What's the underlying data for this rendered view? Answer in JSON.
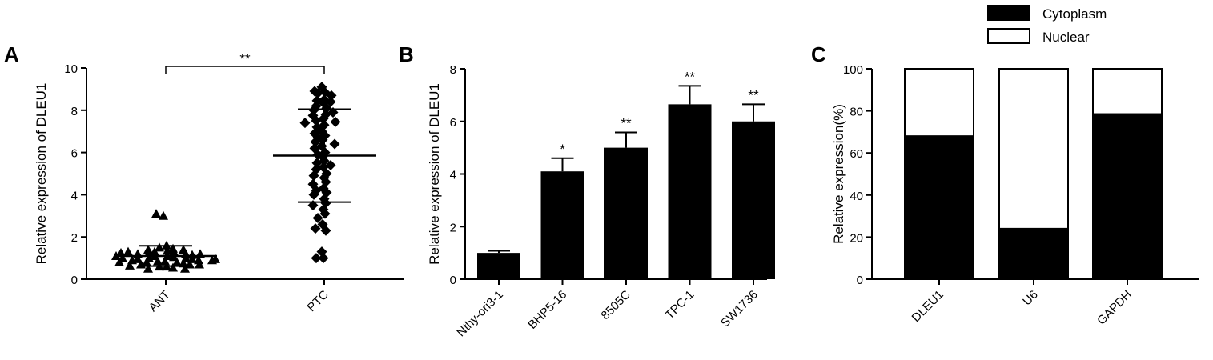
{
  "chart_data": [
    {
      "panel": "A",
      "type": "scatter",
      "ylabel": "Relative expression of DLEU1",
      "ylim": [
        0,
        10
      ],
      "yticks": [
        "0",
        "2",
        "4",
        "6",
        "8",
        "10"
      ],
      "categories": [
        "ANT",
        "PTC"
      ],
      "series": [
        {
          "group": "ANT",
          "marker": "triangle",
          "mean": 1.1,
          "sd": 0.48,
          "values": [
            3.0,
            3.1,
            1.6,
            1.5,
            1.45,
            1.4,
            1.35,
            1.3,
            1.3,
            1.25,
            1.2,
            1.2,
            1.15,
            1.1,
            1.1,
            1.05,
            1.0,
            1.0,
            0.95,
            0.95,
            0.9,
            0.9,
            0.85,
            0.85,
            0.8,
            0.8,
            0.75,
            0.7,
            0.7,
            0.65,
            0.6,
            0.6,
            0.55,
            0.5,
            0.5,
            1.3,
            1.2,
            1.0,
            0.9,
            0.7,
            1.4,
            1.1,
            0.8,
            1.25,
            0.95
          ]
        },
        {
          "group": "PTC",
          "marker": "diamond",
          "mean": 5.85,
          "sd": 2.2,
          "values": [
            9.1,
            8.9,
            8.85,
            8.8,
            8.7,
            8.5,
            8.45,
            8.4,
            8.35,
            8.2,
            8.1,
            8.0,
            7.9,
            7.8,
            7.75,
            7.6,
            7.5,
            7.45,
            7.4,
            7.3,
            7.2,
            7.0,
            6.9,
            6.8,
            6.7,
            6.6,
            6.5,
            6.4,
            6.3,
            6.2,
            6.0,
            5.9,
            5.8,
            5.6,
            5.5,
            5.4,
            5.3,
            5.2,
            5.0,
            4.9,
            4.8,
            4.6,
            4.5,
            4.3,
            4.2,
            4.1,
            4.0,
            3.8,
            3.6,
            3.5,
            3.3,
            3.1,
            2.9,
            2.6,
            2.4,
            2.3,
            1.3,
            1.0,
            1.0
          ]
        }
      ],
      "significance": [
        {
          "between": [
            "ANT",
            "PTC"
          ],
          "label": "**"
        }
      ]
    },
    {
      "panel": "B",
      "type": "bar",
      "ylabel": "Relative expression of DLEU1",
      "ylim": [
        0,
        8
      ],
      "yticks": [
        "0",
        "2",
        "4",
        "6",
        "8"
      ],
      "categories": [
        "Nthy-ori3-1",
        "BHP5-16",
        "8505C",
        "TPC-1",
        "SW1736"
      ],
      "values": [
        1.0,
        4.1,
        5.0,
        6.65,
        6.0
      ],
      "errors": [
        0.08,
        0.5,
        0.58,
        0.7,
        0.65
      ],
      "annotations": [
        "",
        "*",
        "**",
        "**",
        "**"
      ]
    },
    {
      "panel": "C",
      "type": "bar",
      "stacked": true,
      "ylabel": "Relative expression(%)",
      "ylim": [
        0,
        100
      ],
      "yticks": [
        "0",
        "20",
        "40",
        "60",
        "80",
        "100"
      ],
      "categories": [
        "DLEU1",
        "U6",
        "GAPDH"
      ],
      "series": [
        {
          "name": "Cytoplasm",
          "values": [
            68,
            24,
            78.5
          ],
          "color": "#000000"
        },
        {
          "name": "Nuclear",
          "values": [
            32,
            76,
            21.5
          ],
          "color": "#ffffff"
        }
      ],
      "legend": "top"
    }
  ]
}
